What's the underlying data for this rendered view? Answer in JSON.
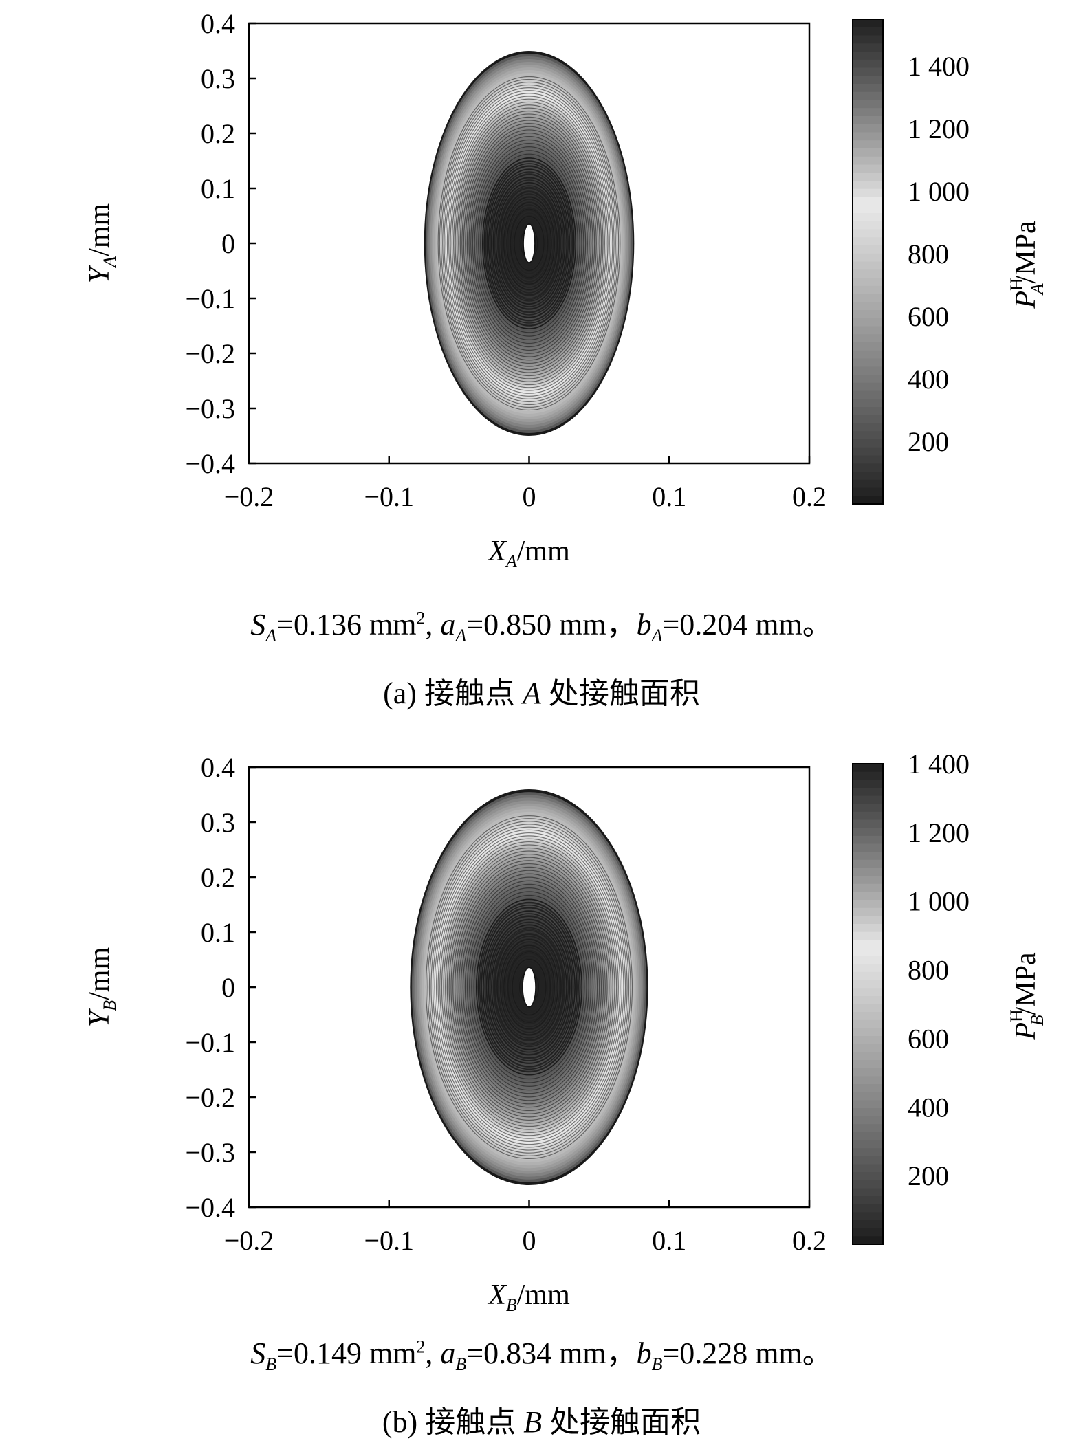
{
  "chart_data": [
    {
      "type": "heatmap",
      "panel_id": "a",
      "xlabel_main": "X",
      "xlabel_sub": "A",
      "xlabel_unit": "/mm",
      "ylabel_main": "Y",
      "ylabel_sub": "A",
      "ylabel_unit": "/mm",
      "xlim": [
        -0.2,
        0.2
      ],
      "ylim": [
        -0.4,
        0.4
      ],
      "xticks": [
        -0.2,
        -0.1,
        0,
        0.1,
        0.2
      ],
      "xtick_labels": [
        "−0.2",
        "−0.1",
        "0",
        "0.1",
        "0.2"
      ],
      "yticks": [
        0.4,
        0.3,
        0.2,
        0.1,
        0,
        -0.1,
        -0.2,
        -0.3,
        -0.4
      ],
      "ytick_labels": [
        "0.4",
        "0.3",
        "0.2",
        "0.1",
        "0",
        "−0.1",
        "−0.2",
        "−0.3",
        "−0.4"
      ],
      "ellipse": {
        "center": [
          0,
          0
        ],
        "semi_x": 0.075,
        "semi_y": 0.35
      },
      "colorbar": {
        "label_main": "P",
        "label_sup": "H",
        "label_sub": "A",
        "label_unit": "/MPa",
        "min": 0,
        "max": 1550,
        "ticks": [
          1400,
          1200,
          1000,
          800,
          600,
          400,
          200
        ],
        "tick_labels": [
          "1 400",
          "1 200",
          "1 000",
          "800",
          "600",
          "400",
          "200"
        ],
        "colormap": "gray-dark-light-dark"
      },
      "stats_line": {
        "S_label": "S",
        "S_sub": "A",
        "S_value": "=0.136 mm",
        "S_sup": "2",
        "a_label": "a",
        "a_sub": "A",
        "a_value": "=0.850 mm，",
        "b_label": "b",
        "b_sub": "A",
        "b_value": "=0.204 mm。"
      },
      "caption": {
        "prefix": "(a) 接触点 ",
        "point": "A",
        "suffix": " 处接触面积"
      }
    },
    {
      "type": "heatmap",
      "panel_id": "b",
      "xlabel_main": "X",
      "xlabel_sub": "B",
      "xlabel_unit": "/mm",
      "ylabel_main": "Y",
      "ylabel_sub": "B",
      "ylabel_unit": "/mm",
      "xlim": [
        -0.2,
        0.2
      ],
      "ylim": [
        -0.4,
        0.4
      ],
      "xticks": [
        -0.2,
        -0.1,
        0,
        0.1,
        0.2
      ],
      "xtick_labels": [
        "−0.2",
        "−0.1",
        "0",
        "0.1",
        "0.2"
      ],
      "yticks": [
        0.4,
        0.3,
        0.2,
        0.1,
        0,
        -0.1,
        -0.2,
        -0.3,
        -0.4
      ],
      "ytick_labels": [
        "0.4",
        "0.3",
        "0.2",
        "0.1",
        "0",
        "−0.1",
        "−0.2",
        "−0.3",
        "−0.4"
      ],
      "ellipse": {
        "center": [
          0,
          0
        ],
        "semi_x": 0.085,
        "semi_y": 0.36
      },
      "colorbar": {
        "label_main": "P",
        "label_sup": "H",
        "label_sub": "B",
        "label_unit": "/MPa",
        "min": 0,
        "max": 1400,
        "ticks": [
          1400,
          1200,
          1000,
          800,
          600,
          400,
          200
        ],
        "tick_labels": [
          "1 400",
          "1 200",
          "1 000",
          "800",
          "600",
          "400",
          "200"
        ],
        "colormap": "gray-dark-light-dark"
      },
      "stats_line": {
        "S_label": "S",
        "S_sub": "B",
        "S_value": "=0.149 mm",
        "S_sup": "2",
        "a_label": "a",
        "a_sub": "B",
        "a_value": "=0.834 mm，",
        "b_label": "b",
        "b_sub": "B",
        "b_value": "=0.228 mm。"
      },
      "caption": {
        "prefix": "(b) 接触点 ",
        "point": "B",
        "suffix": " 处接触面积"
      }
    }
  ]
}
